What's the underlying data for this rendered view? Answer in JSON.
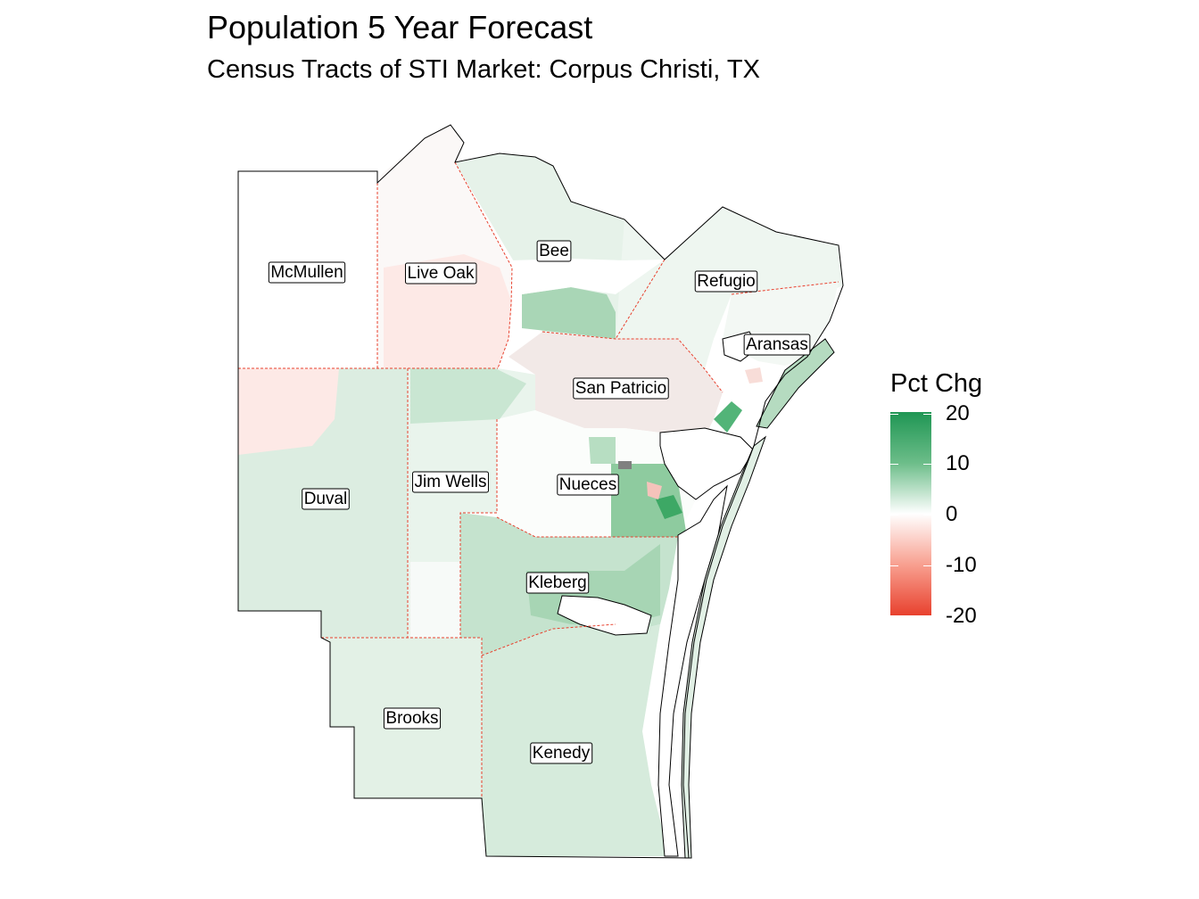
{
  "title": "Population 5 Year Forecast",
  "subtitle": "Census Tracts of STI Market: Corpus Christi, TX",
  "legend": {
    "title": "Pct Chg",
    "ticks": [
      "20",
      "10",
      "0",
      "-10",
      "-20"
    ],
    "colors": {
      "high": "#1f9654",
      "mid": "#ffffff",
      "low": "#e8412e"
    }
  },
  "counties": [
    {
      "name": "McMullen"
    },
    {
      "name": "Live Oak"
    },
    {
      "name": "Bee"
    },
    {
      "name": "Refugio"
    },
    {
      "name": "Aransas"
    },
    {
      "name": "San Patricio"
    },
    {
      "name": "Duval"
    },
    {
      "name": "Jim Wells"
    },
    {
      "name": "Nueces"
    },
    {
      "name": "Kleberg"
    },
    {
      "name": "Brooks"
    },
    {
      "name": "Kenedy"
    }
  ],
  "colors": {
    "county_border": "#e8412e",
    "market_outline": "#000000",
    "no_data": "#808080"
  }
}
